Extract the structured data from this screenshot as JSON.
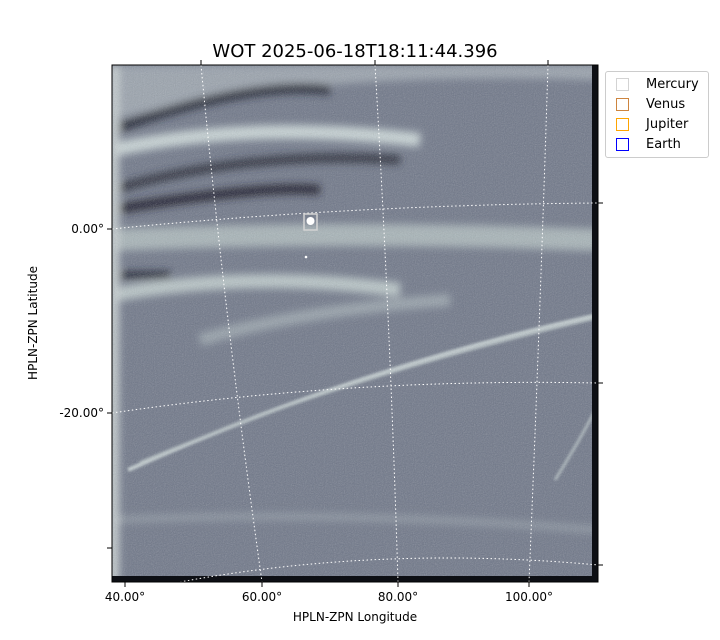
{
  "chart_data": {
    "type": "image",
    "title": "WOT 2025-06-18T18:11:44.396",
    "xlabel": "HPLN-ZPN Longitude",
    "ylabel": "HPLN-ZPN Latitude",
    "x_ticks": [
      "40.00°",
      "60.00°",
      "80.00°",
      "100.00°"
    ],
    "y_ticks": [
      "0.00°",
      "-20.00°"
    ],
    "colormap": "bone",
    "grid": true,
    "legend_placement": "outside-top-right",
    "legend": [
      {
        "name": "Mercury",
        "color": "#d3d3d3"
      },
      {
        "name": "Venus",
        "color": "#cd853f"
      },
      {
        "name": "Jupiter",
        "color": "#ffa500"
      },
      {
        "name": "Earth",
        "color": "#0000ff"
      }
    ]
  }
}
